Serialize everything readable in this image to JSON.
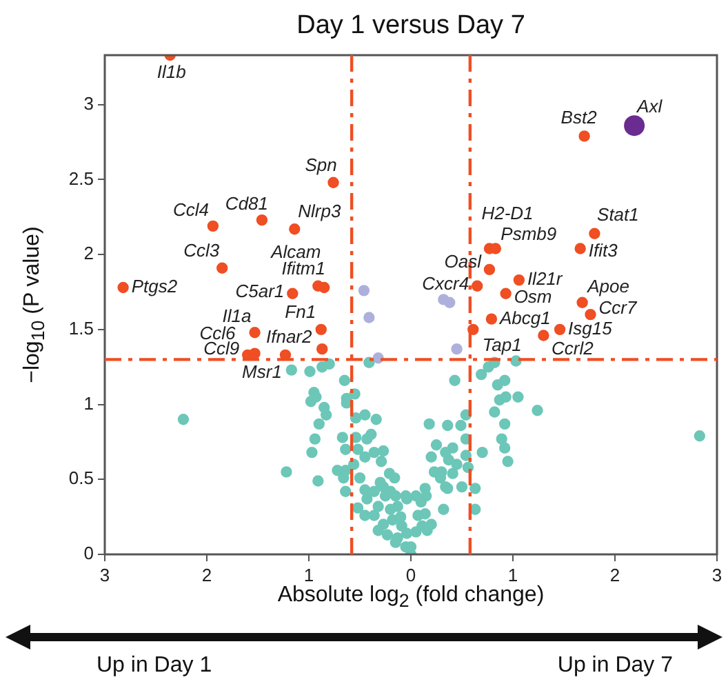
{
  "chart_data": {
    "type": "scatter",
    "title": "Day 1 versus Day 7",
    "xlabel": "Absolute log$_{2}$ (fold change)",
    "ylabel": "−log$_{10}$ (P value)",
    "xlim": [
      -3,
      3
    ],
    "ylim": [
      0,
      3.33
    ],
    "xticks": [
      {
        "value": -3,
        "label": "3"
      },
      {
        "value": -2,
        "label": "2"
      },
      {
        "value": -1,
        "label": "1"
      },
      0,
      1,
      2,
      3
    ],
    "yticks": [
      0,
      0.5,
      1,
      1.5,
      2,
      2.5,
      3
    ],
    "grid": false,
    "legend": false,
    "marker": "circle",
    "series": [
      {
        "color": "#6cc7b8",
        "x": [
          -1.17,
          -0.99,
          -0.87,
          -0.8,
          -2.23,
          -0.98,
          -0.95,
          -0.93,
          -0.85,
          -0.83,
          -0.9,
          -0.94,
          -0.97,
          -0.91,
          -1.22,
          -0.65,
          -0.63,
          -0.55,
          -0.63,
          -0.54,
          -0.45,
          -0.41,
          -0.34,
          -0.67,
          -0.54,
          -0.43,
          -0.39,
          -0.64,
          -0.52,
          -0.72,
          -0.64,
          -0.56,
          -0.45,
          -0.36,
          -0.29,
          -0.27,
          -0.21,
          -0.16,
          -0.66,
          -0.64,
          -0.5,
          -0.45,
          -0.52,
          -0.43,
          -0.36,
          -0.32,
          -0.27,
          -0.2,
          -0.13,
          -0.04,
          -0.36,
          -0.27,
          -0.18,
          -0.09,
          -0.13,
          -0.05,
          0,
          -0.32,
          -0.23,
          -0.45,
          0.69,
          0.76,
          0.82,
          1.03,
          0.43,
          0.85,
          0.92,
          0.87,
          0.93,
          1.05,
          1.24,
          0.82,
          0.92,
          0.89,
          0.92,
          0.95,
          0.7,
          0.54,
          0.49,
          0.36,
          0.18,
          0.54,
          0.41,
          0.34,
          0.25,
          0.54,
          0.37,
          0.2,
          0.23,
          0.29,
          0.41,
          0.56,
          0.63,
          0.63,
          0.34,
          0.14,
          0.36,
          0.32,
          0.14,
          0.07,
          0.11,
          0.16,
          -0.04,
          0,
          2.83,
          -0.25,
          -0.15,
          -0.05,
          0.05,
          0.15,
          -0.2,
          -0.1,
          0.05,
          -0.15,
          0.1,
          0.2,
          0.3,
          -0.3,
          0.45,
          0.5
        ],
        "values": [
          1.23,
          1.22,
          1.25,
          1.27,
          0.9,
          1.02,
          1.08,
          1.05,
          0.98,
          0.93,
          0.87,
          0.77,
          0.68,
          0.49,
          0.55,
          1.16,
          1.04,
          1.07,
          1.01,
          0.91,
          0.93,
          1.28,
          0.9,
          0.78,
          0.78,
          0.77,
          0.8,
          0.7,
          0.7,
          0.56,
          0.56,
          0.6,
          0.65,
          0.68,
          0.62,
          0.69,
          0.54,
          0.51,
          0.51,
          0.42,
          0.51,
          0.43,
          0.31,
          0.37,
          0.42,
          0.32,
          0.45,
          0.42,
          0.32,
          0.37,
          0.26,
          0.2,
          0.23,
          0.19,
          0.11,
          0.05,
          0,
          0.16,
          0.13,
          0.26,
          1.2,
          1.25,
          1.28,
          1.29,
          1.16,
          1.13,
          1.16,
          1.03,
          1.05,
          1.05,
          0.96,
          0.95,
          0.87,
          0.77,
          0.71,
          0.62,
          0.68,
          0.93,
          0.86,
          0.86,
          0.87,
          0.77,
          0.71,
          0.68,
          0.73,
          0.66,
          0.63,
          0.65,
          0.55,
          0.51,
          0.54,
          0.58,
          0.44,
          0.3,
          0.45,
          0.44,
          0.44,
          0.3,
          0.27,
          0.26,
          0.19,
          0.16,
          0.14,
          0.05,
          0.79,
          0.39,
          0.39,
          0.39,
          0.39,
          0.39,
          0.3,
          0.25,
          0.15,
          0.08,
          0.35,
          0.2,
          0.55,
          0.48,
          0.6,
          0.45
        ]
      },
      {
        "color": "#aeb0dc",
        "x": [
          -0.46,
          -0.41,
          -0.32,
          0.32,
          0.38,
          0.45
        ],
        "values": [
          1.76,
          1.58,
          1.31,
          1.7,
          1.68,
          1.37
        ]
      },
      {
        "color": "#f04e23",
        "x": [
          -2.36,
          -0.76,
          -1.94,
          -1.46,
          -1.14,
          -1.85,
          -2.82,
          -1.16,
          -0.91,
          -0.85,
          -1.53,
          -0.88,
          -1.53,
          -1.6,
          -1.23,
          -0.87,
          1.7,
          1.8,
          1.66,
          0.77,
          0.83,
          0.77,
          0.65,
          1.06,
          0.93,
          0.79,
          0.61,
          1.3,
          1.46,
          1.68,
          1.76
        ],
        "values": [
          3.33,
          2.48,
          2.19,
          2.23,
          2.17,
          1.91,
          1.78,
          1.74,
          1.79,
          1.78,
          1.48,
          1.5,
          1.34,
          1.33,
          1.33,
          1.37,
          2.79,
          2.14,
          2.04,
          2.04,
          2.04,
          1.9,
          1.79,
          1.83,
          1.74,
          1.57,
          1.5,
          1.46,
          1.5,
          1.68,
          1.6
        ]
      },
      {
        "type": "bubble",
        "color": "#6a2c91",
        "x": [
          2.19
        ],
        "values": [
          2.86
        ],
        "sizes": [
          1
        ]
      }
    ],
    "ref_lines": [
      {
        "axis": "x",
        "value": -0.58,
        "color": "#f04e23",
        "line_style": "dashed"
      },
      {
        "axis": "x",
        "value": 0.58,
        "color": "#f04e23",
        "line_style": "dashed"
      },
      {
        "axis": "y",
        "value": 1.3,
        "color": "#f04e23",
        "line_style": "dashed"
      }
    ],
    "annotations": [
      {
        "text": "Il1b",
        "x": -2.36,
        "y": 3.33
      },
      {
        "text": "Spn",
        "x": -0.76,
        "y": 2.48
      },
      {
        "text": "Ccl4",
        "x": -1.94,
        "y": 2.19
      },
      {
        "text": "Cd81",
        "x": -1.46,
        "y": 2.23
      },
      {
        "text": "Nlrp3",
        "x": -1.14,
        "y": 2.17
      },
      {
        "text": "Ccl3",
        "x": -1.85,
        "y": 1.91
      },
      {
        "text": "Alcam",
        "x": -0.91,
        "y": 1.79
      },
      {
        "text": "Ifitm1",
        "x": -0.85,
        "y": 1.78
      },
      {
        "text": "Ptgs2",
        "x": -2.82,
        "y": 1.78
      },
      {
        "text": "C5ar1",
        "x": -1.16,
        "y": 1.74
      },
      {
        "text": "Il1a",
        "x": -1.53,
        "y": 1.48
      },
      {
        "text": "Fn1",
        "x": -0.88,
        "y": 1.5
      },
      {
        "text": "Ccl6",
        "x": -1.53,
        "y": 1.34
      },
      {
        "text": "Ifnar2",
        "x": -0.87,
        "y": 1.37
      },
      {
        "text": "Ccl9",
        "x": -1.6,
        "y": 1.33
      },
      {
        "text": "Msr1",
        "x": -1.23,
        "y": 1.33
      },
      {
        "text": "Bst2",
        "x": 1.7,
        "y": 2.79
      },
      {
        "text": "Axl",
        "x": 2.19,
        "y": 2.86
      },
      {
        "text": "H2-D1",
        "x": 0.77,
        "y": 2.04
      },
      {
        "text": "Stat1",
        "x": 1.8,
        "y": 2.14
      },
      {
        "text": "Psmb9",
        "x": 0.83,
        "y": 2.04
      },
      {
        "text": "Ifit3",
        "x": 1.66,
        "y": 2.04
      },
      {
        "text": "Oasl",
        "x": 0.77,
        "y": 1.9
      },
      {
        "text": "Cxcr4",
        "x": 0.65,
        "y": 1.79
      },
      {
        "text": "Il21r",
        "x": 1.06,
        "y": 1.83
      },
      {
        "text": "Osm",
        "x": 0.93,
        "y": 1.74
      },
      {
        "text": "Apoe",
        "x": 1.68,
        "y": 1.68
      },
      {
        "text": "Ccr7",
        "x": 1.76,
        "y": 1.6
      },
      {
        "text": "Abcg1",
        "x": 0.79,
        "y": 1.57
      },
      {
        "text": "Isg15",
        "x": 1.46,
        "y": 1.5
      },
      {
        "text": "Tap1",
        "x": 0.61,
        "y": 1.5
      },
      {
        "text": "Ccrl2",
        "x": 1.3,
        "y": 1.46
      },
      "Up in Day 1",
      "Up in Day 7"
    ]
  }
}
